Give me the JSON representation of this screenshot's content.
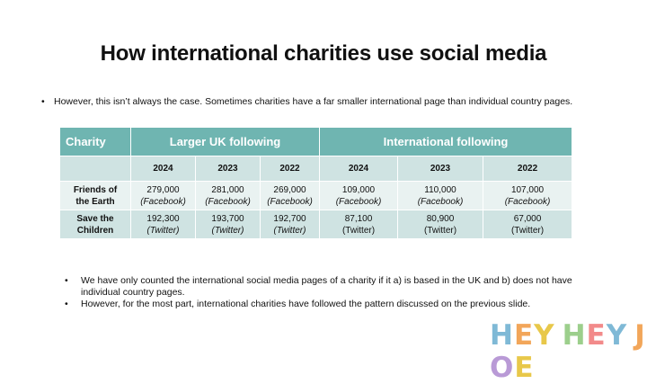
{
  "title": "How international charities use social media",
  "top_bullet": "However, this isn’t always the case. Sometimes charities have a far smaller international page than individual country pages.",
  "table": {
    "header_charity": "Charity",
    "header_uk": "Larger UK following",
    "header_intl": "International following",
    "years": [
      "2024",
      "2023",
      "2022",
      "2024",
      "2023",
      "2022"
    ],
    "rows": [
      {
        "name_line1": "Friends of",
        "name_line2": "the Earth",
        "cells": [
          {
            "value": "279,000",
            "platform": "(Facebook)"
          },
          {
            "value": "281,000",
            "platform": "(Facebook)"
          },
          {
            "value": "269,000",
            "platform": "(Facebook)"
          },
          {
            "value": "109,000",
            "platform": "(Facebook)"
          },
          {
            "value": "110,000",
            "platform": "(Facebook)"
          },
          {
            "value": "107,000",
            "platform": "(Facebook)"
          }
        ]
      },
      {
        "name_line1": "Save the",
        "name_line2": "Children",
        "cells": [
          {
            "value": "192,300",
            "platform": "(Twitter)"
          },
          {
            "value": "193,700",
            "platform": "(Twitter)"
          },
          {
            "value": "192,700",
            "platform": "(Twitter)"
          },
          {
            "value": "87,100",
            "platform": "(Twitter)"
          },
          {
            "value": "80,900",
            "platform": "(Twitter)"
          },
          {
            "value": "67,000",
            "platform": "(Twitter)"
          }
        ]
      }
    ]
  },
  "notes": [
    "We have only counted the international social media pages of a charity if it a) is based in the UK and b) does not have individual country pages.",
    "However, for the most part, international charities have followed the pattern discussed on the previous slide."
  ],
  "bullet_char": "•",
  "logo": {
    "letters": [
      "H",
      "E",
      "Y",
      " ",
      "H",
      "E",
      "Y",
      " ",
      "J",
      "O",
      "E"
    ],
    "colors": [
      "#7fb9d6",
      "#f2a65a",
      "#e8c84a",
      "",
      "#9ccf8c",
      "#f28a8a",
      "#7fb9d6",
      "",
      "#f2a65a",
      "#b99ad6",
      "#e8c84a"
    ]
  }
}
